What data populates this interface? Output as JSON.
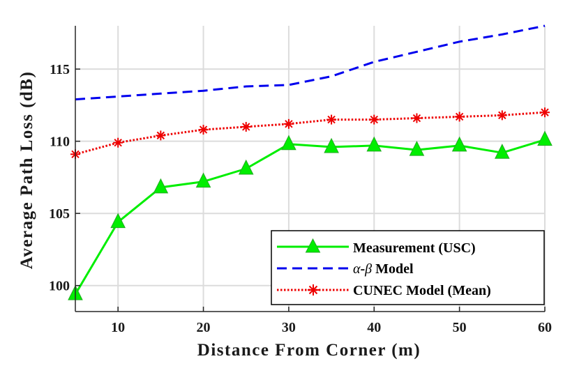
{
  "chart_data": {
    "type": "line",
    "xlabel": "Distance From Corner (m)",
    "ylabel": "Average Path Loss (dB)",
    "xlim": [
      5,
      60
    ],
    "ylim": [
      98.2,
      118
    ],
    "xticks": [
      10,
      20,
      30,
      40,
      50,
      60
    ],
    "yticks": [
      100,
      105,
      110,
      115
    ],
    "grid": true,
    "legend_position": "bottom-right",
    "series": [
      {
        "name": "Measurement (USC)",
        "color": "#00ee00",
        "style": "solid",
        "marker": "triangle",
        "x": [
          5,
          10,
          15,
          20,
          25,
          30,
          35,
          40,
          45,
          50,
          55,
          60
        ],
        "values": [
          99.4,
          104.4,
          106.8,
          107.2,
          108.1,
          109.8,
          109.6,
          109.7,
          109.4,
          109.7,
          109.2,
          110.1
        ]
      },
      {
        "name": "α-β Model",
        "legend_alpha": "α",
        "legend_dash": "-",
        "legend_beta": "β",
        "legend_rest": " Model",
        "color": "#0000ee",
        "style": "dashed",
        "marker": "none",
        "x": [
          5,
          10,
          15,
          20,
          25,
          30,
          35,
          40,
          45,
          50,
          55,
          60
        ],
        "values": [
          112.9,
          113.1,
          113.3,
          113.5,
          113.8,
          113.9,
          114.5,
          115.5,
          116.2,
          116.9,
          117.4,
          118.0
        ]
      },
      {
        "name": "CUNEC Model (Mean)",
        "color": "#ee0000",
        "style": "dotted",
        "marker": "asterisk",
        "x": [
          5,
          10,
          15,
          20,
          25,
          30,
          35,
          40,
          45,
          50,
          55,
          60
        ],
        "values": [
          109.1,
          109.9,
          110.4,
          110.8,
          111.0,
          111.2,
          111.5,
          111.5,
          111.6,
          111.7,
          111.8,
          112.0
        ]
      }
    ]
  }
}
